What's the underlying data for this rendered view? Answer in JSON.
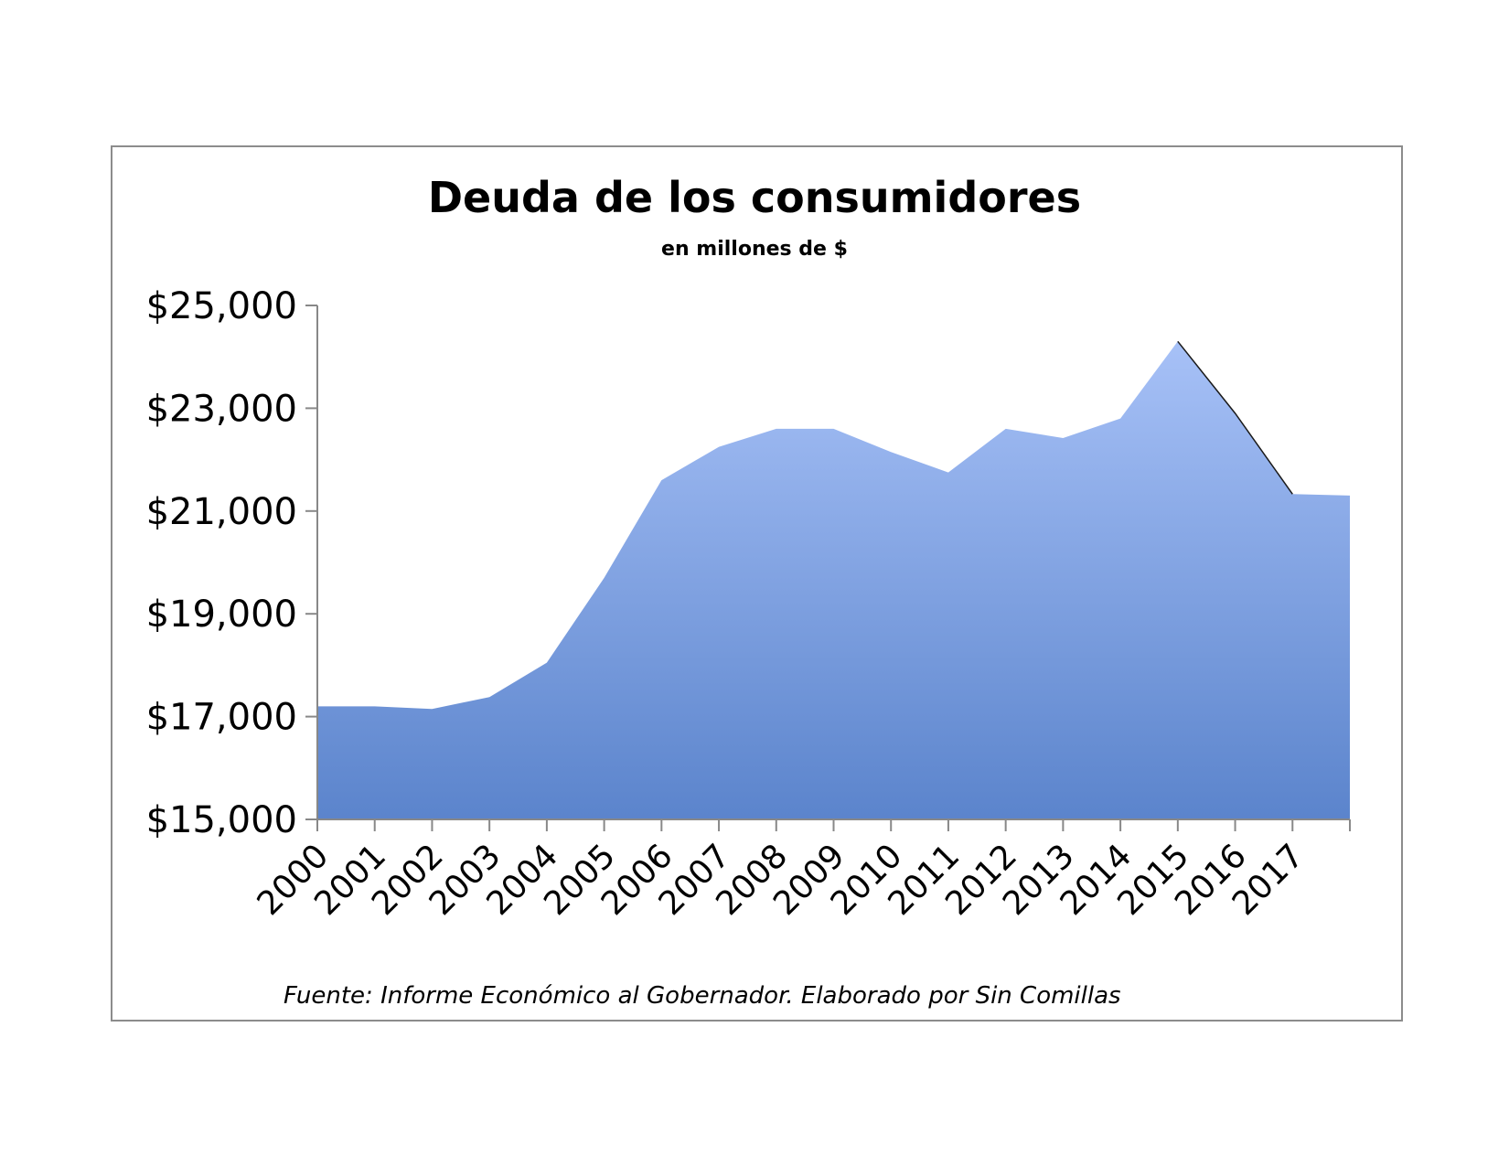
{
  "chart_data": {
    "type": "area",
    "title": "Deuda de los consumidores",
    "subtitle": "en millones de $",
    "source_note": "Fuente: Informe Económico al Gobernador.  Elaborado por Sin Comillas",
    "categories": [
      "2000",
      "2001",
      "2002",
      "2003",
      "2004",
      "2005",
      "2006",
      "2007",
      "2008",
      "2009",
      "2010",
      "2011",
      "2012",
      "2013",
      "2014",
      "2015",
      "2016",
      "2017",
      ""
    ],
    "series": [
      {
        "values": [
          17200,
          17200,
          17150,
          17380,
          18050,
          19700,
          21600,
          22250,
          22600,
          22600,
          22150,
          21750,
          22600,
          22420,
          22800,
          24300,
          22900,
          21330,
          21300
        ]
      }
    ],
    "y_ticks": [
      {
        "value": 15000,
        "label": "$15,000"
      },
      {
        "value": 17000,
        "label": "$17,000"
      },
      {
        "value": 19000,
        "label": "$19,000"
      },
      {
        "value": 21000,
        "label": "$21,000"
      },
      {
        "value": 23000,
        "label": "$23,000"
      },
      {
        "value": 25000,
        "label": "$25,000"
      }
    ],
    "ylim": [
      15000,
      25000
    ],
    "grid": false,
    "legend": "none",
    "colors": {
      "area_top": "#a7c1f7",
      "area_bottom": "#5b84cc",
      "axis": "#888888",
      "frame": "#8c8c8c",
      "text": "#000000"
    }
  }
}
